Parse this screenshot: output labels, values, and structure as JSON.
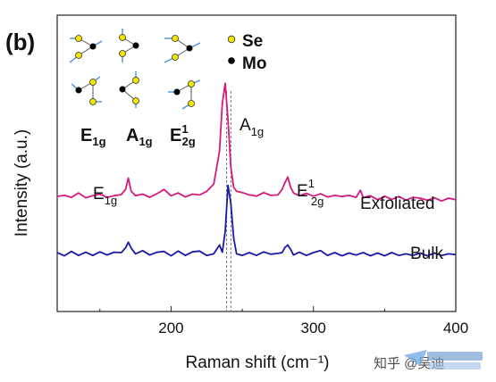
{
  "panel_label": "(b)",
  "legend": {
    "items": [
      {
        "symbol": "yellow-circle",
        "label": "Se",
        "color": "#f2e500"
      },
      {
        "symbol": "black-circle",
        "label": "Mo",
        "color": "#000000"
      }
    ]
  },
  "mode_labels": [
    {
      "base": "E",
      "sup": "",
      "sub": "1g"
    },
    {
      "base": "A",
      "sup": "",
      "sub": "1g"
    },
    {
      "base": "E",
      "sup": "1",
      "sub": "2g"
    }
  ],
  "peak_labels": {
    "e1g": {
      "base": "E",
      "sub": "1g"
    },
    "a1g": {
      "base": "A",
      "sub": "1g"
    },
    "e2g": {
      "base": "E",
      "sup": "1",
      "sub": "2g"
    }
  },
  "watermark": {
    "text": "知乎 @吴迪",
    "logo": "unionlaser"
  },
  "chart_data": {
    "type": "line",
    "xlabel": "Raman shift (cm⁻¹)",
    "ylabel": "Intensity (a.u.)",
    "xlim": [
      120,
      400
    ],
    "xticks": [
      200,
      300,
      400
    ],
    "grid": false,
    "reference_lines_x": [
      239,
      242
    ],
    "series": [
      {
        "name": "Exfoliated",
        "color": "#d6197f",
        "x": [
          120,
          125,
          130,
          135,
          140,
          145,
          150,
          155,
          160,
          165,
          168,
          170,
          172,
          175,
          180,
          185,
          190,
          195,
          200,
          205,
          210,
          215,
          220,
          225,
          230,
          234,
          236,
          238,
          240,
          242,
          244,
          246,
          250,
          255,
          260,
          265,
          270,
          275,
          278,
          280,
          282,
          284,
          286,
          290,
          295,
          300,
          305,
          310,
          315,
          320,
          325,
          330,
          333,
          335,
          340,
          345,
          350,
          355,
          360,
          365,
          370,
          375,
          380,
          385,
          390,
          395,
          400
        ],
        "y": [
          0.75,
          1.0,
          0.5,
          1.6,
          0.4,
          0.9,
          1.3,
          0.5,
          0.9,
          1.2,
          2.5,
          5.3,
          2.0,
          0.9,
          1.3,
          0.5,
          1.4,
          2.5,
          0.9,
          1.6,
          0.6,
          1.3,
          1.1,
          2.0,
          3.8,
          12.0,
          24.0,
          29.0,
          20.0,
          8.0,
          3.0,
          2.0,
          1.7,
          1.1,
          0.8,
          1.7,
          1.0,
          1.1,
          2.5,
          4.2,
          5.6,
          3.0,
          1.6,
          0.9,
          1.5,
          0.8,
          1.4,
          0.6,
          1.0,
          0.7,
          1.0,
          0.5,
          2.3,
          0.4,
          0.9,
          -0.1,
          0.8,
          0.0,
          0.7,
          -0.2,
          0.5,
          0.3,
          -0.2,
          0.4,
          -0.4,
          0.3,
          -0.1
        ]
      },
      {
        "name": "Bulk",
        "color": "#1a1aa6",
        "x": [
          120,
          125,
          130,
          135,
          140,
          145,
          150,
          155,
          160,
          165,
          168,
          170,
          172,
          175,
          180,
          185,
          190,
          195,
          200,
          205,
          210,
          215,
          220,
          225,
          230,
          234,
          236,
          238,
          240,
          242,
          244,
          246,
          250,
          255,
          260,
          265,
          270,
          275,
          278,
          280,
          282,
          284,
          286,
          290,
          295,
          300,
          305,
          310,
          315,
          320,
          325,
          330,
          335,
          340,
          345,
          350,
          355,
          360,
          365,
          370,
          375,
          380,
          385,
          390,
          395,
          400
        ],
        "y": [
          -13.3,
          -14.1,
          -13.0,
          -14.0,
          -13.2,
          -14.0,
          -13.1,
          -13.9,
          -13.2,
          -13.3,
          -12.1,
          -10.7,
          -12.2,
          -13.6,
          -12.8,
          -13.9,
          -13.2,
          -13.0,
          -14.1,
          -12.9,
          -14.0,
          -13.1,
          -12.9,
          -14.0,
          -13.6,
          -11.4,
          -13.2,
          -8.0,
          3.5,
          -1.0,
          -9.7,
          -13.6,
          -14.0,
          -13.3,
          -14.0,
          -13.1,
          -13.7,
          -13.5,
          -13.3,
          -12.0,
          -11.4,
          -12.5,
          -13.9,
          -13.2,
          -14.0,
          -13.3,
          -12.8,
          -14.0,
          -13.3,
          -14.1,
          -13.4,
          -13.9,
          -13.3,
          -14.1,
          -13.4,
          -14.1,
          -13.3,
          -14.0,
          -13.6,
          -14.0,
          -13.4,
          -14.1,
          -13.4,
          -14.0,
          -13.6,
          -13.8
        ]
      }
    ],
    "ylim": [
      -28,
      46
    ]
  }
}
